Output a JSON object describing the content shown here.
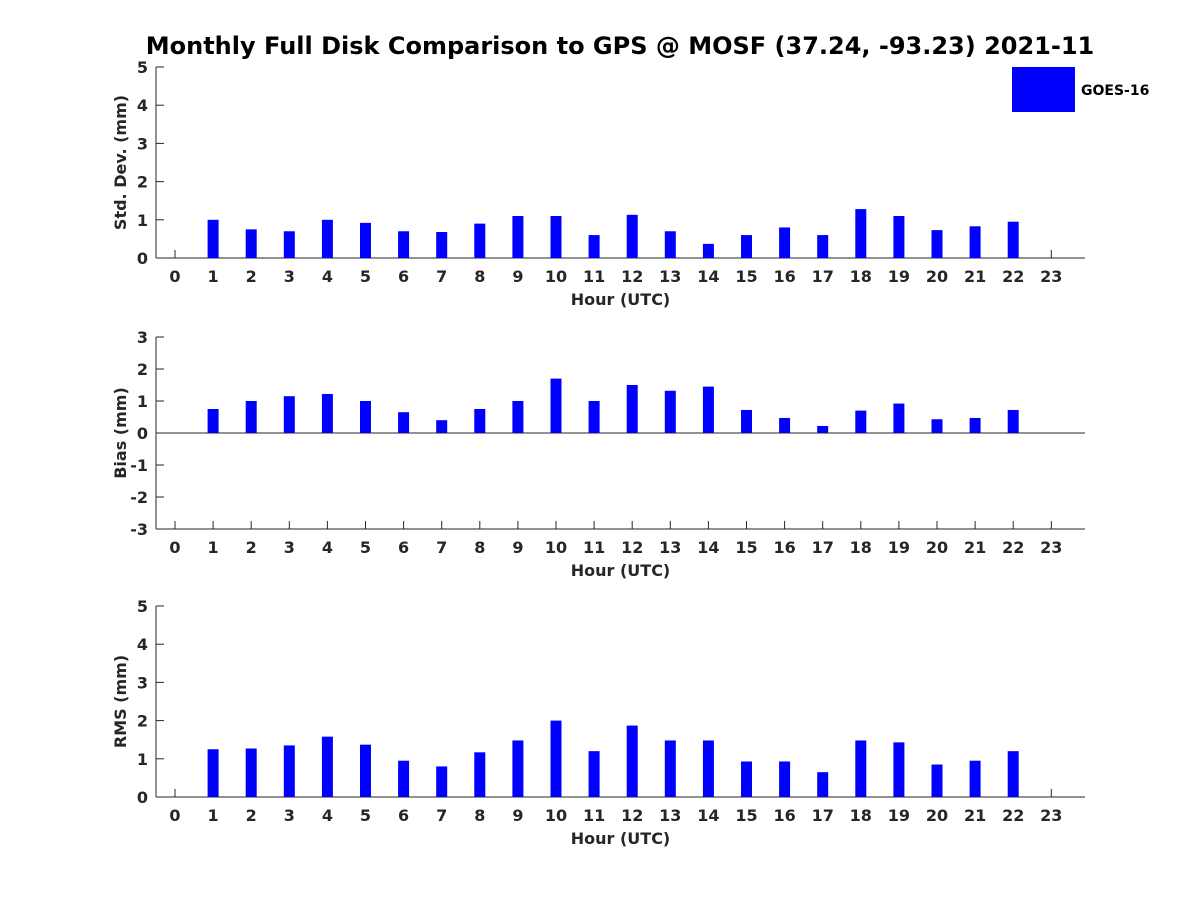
{
  "chart_data": {
    "title": "Monthly Full Disk Comparison to GPS @ MOSF (37.24, -93.23) 2021-11",
    "legend": {
      "label": "GOES-16",
      "color": "#0000ff",
      "placement": "top-right"
    },
    "bar_color": "#0000ff",
    "panels": [
      {
        "type": "bar",
        "xlabel": "Hour (UTC)",
        "ylabel": "Std. Dev. (mm)",
        "ylim": [
          0,
          5
        ],
        "yticks": [
          "0",
          "1",
          "2",
          "3",
          "4",
          "5"
        ],
        "categories": [
          "0",
          "1",
          "2",
          "3",
          "4",
          "5",
          "6",
          "7",
          "8",
          "9",
          "10",
          "11",
          "12",
          "13",
          "14",
          "15",
          "16",
          "17",
          "18",
          "19",
          "20",
          "21",
          "22",
          "23"
        ],
        "values": [
          null,
          1.0,
          0.75,
          0.7,
          1.0,
          0.92,
          0.7,
          0.68,
          0.9,
          1.1,
          1.1,
          0.6,
          1.13,
          0.7,
          0.37,
          0.6,
          0.8,
          0.6,
          1.28,
          1.1,
          0.73,
          0.83,
          0.95,
          null
        ]
      },
      {
        "type": "bar",
        "xlabel": "Hour (UTC)",
        "ylabel": "Bias (mm)",
        "ylim": [
          -3,
          3
        ],
        "yticks": [
          "-3",
          "-2",
          "-1",
          "0",
          "1",
          "2",
          "3"
        ],
        "categories": [
          "0",
          "1",
          "2",
          "3",
          "4",
          "5",
          "6",
          "7",
          "8",
          "9",
          "10",
          "11",
          "12",
          "13",
          "14",
          "15",
          "16",
          "17",
          "18",
          "19",
          "20",
          "21",
          "22",
          "23"
        ],
        "values": [
          null,
          0.75,
          1.0,
          1.15,
          1.22,
          1.0,
          0.65,
          0.4,
          0.75,
          1.0,
          1.7,
          1.0,
          1.5,
          1.32,
          1.45,
          0.72,
          0.47,
          0.22,
          0.7,
          0.92,
          0.43,
          0.47,
          0.72,
          null
        ]
      },
      {
        "type": "bar",
        "xlabel": "Hour (UTC)",
        "ylabel": "RMS (mm)",
        "ylim": [
          0,
          5
        ],
        "yticks": [
          "0",
          "1",
          "2",
          "3",
          "4",
          "5"
        ],
        "categories": [
          "0",
          "1",
          "2",
          "3",
          "4",
          "5",
          "6",
          "7",
          "8",
          "9",
          "10",
          "11",
          "12",
          "13",
          "14",
          "15",
          "16",
          "17",
          "18",
          "19",
          "20",
          "21",
          "22",
          "23"
        ],
        "values": [
          null,
          1.25,
          1.27,
          1.35,
          1.58,
          1.37,
          0.95,
          0.8,
          1.17,
          1.48,
          2.0,
          1.2,
          1.87,
          1.48,
          1.48,
          0.93,
          0.93,
          0.65,
          1.48,
          1.43,
          0.85,
          0.95,
          1.2,
          null
        ]
      }
    ]
  }
}
